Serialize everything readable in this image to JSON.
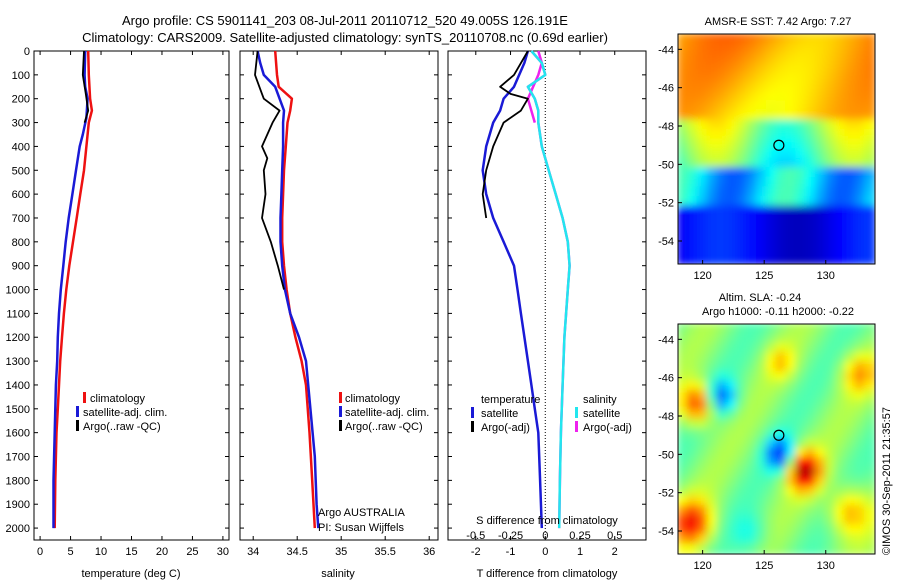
{
  "header": {
    "line1": "Argo profile: CS 5901141_203 08-Jul-2011 20110712_520 49.005S 126.191E",
    "line2": "Climatology: CARS2009. Satellite-adjusted climatology: synTS_20110708.nc (0.69d earlier)"
  },
  "colors": {
    "climatology": "#ee1111",
    "satellite": "#1a1ad6",
    "argo": "#000000",
    "sal_satellite": "#22e6ee",
    "sal_argo": "#ee22ee"
  },
  "chart_data": [
    {
      "type": "line",
      "xlabel": "temperature (deg C)",
      "ylim": [
        2050,
        0
      ],
      "xlim": [
        -1,
        31
      ],
      "xticks": [
        "0",
        "5",
        "10",
        "15",
        "20",
        "25",
        "30"
      ],
      "yticks": [
        "0",
        "100",
        "200",
        "300",
        "400",
        "500",
        "600",
        "700",
        "800",
        "900",
        "1000",
        "1100",
        "1200",
        "1300",
        "1400",
        "1500",
        "1600",
        "1700",
        "1800",
        "1900",
        "2000"
      ],
      "legend": [
        "climatology",
        "satellite-adj. clim.",
        "Argo(..raw -QC)"
      ],
      "series": [
        {
          "name": "climatology",
          "x": [
            7.9,
            8.0,
            8.2,
            8.5,
            8.0,
            7.6,
            7.2,
            6.6,
            6.0,
            5.4,
            4.8,
            4.3,
            3.9,
            3.6,
            3.3,
            3.1,
            2.9,
            2.7,
            2.6,
            2.5,
            2.4
          ],
          "depth": [
            0,
            100,
            200,
            250,
            300,
            400,
            500,
            600,
            700,
            800,
            900,
            1000,
            1100,
            1200,
            1300,
            1400,
            1500,
            1600,
            1700,
            1800,
            2000
          ]
        },
        {
          "name": "satellite-adj. clim.",
          "x": [
            7.4,
            7.3,
            7.4,
            7.8,
            7.6,
            7.0,
            6.5,
            5.9,
            5.3,
            4.7,
            4.2,
            3.8,
            3.4,
            3.1,
            2.9,
            2.8,
            2.6,
            2.5,
            2.4,
            2.3,
            2.2,
            2.2
          ],
          "depth": [
            0,
            100,
            150,
            200,
            280,
            350,
            400,
            500,
            600,
            700,
            800,
            900,
            1000,
            1100,
            1200,
            1300,
            1400,
            1500,
            1600,
            1700,
            1800,
            2000
          ]
        },
        {
          "name": "Argo(..raw -QC)",
          "x": [
            7.2,
            7.0,
            7.5,
            7.9,
            7.3
          ],
          "depth": [
            0,
            100,
            180,
            250,
            300
          ]
        }
      ]
    },
    {
      "type": "line",
      "xlabel": "salinity",
      "ylim": [
        2050,
        0
      ],
      "xlim": [
        33.85,
        36.1
      ],
      "xticks": [
        "34",
        "34.5",
        "35",
        "35.5",
        "36"
      ],
      "legend": [
        "climatology",
        "satellite-adj. clim.",
        "Argo(..raw -QC)"
      ],
      "annotation": [
        "Argo AUSTRALIA",
        "PI: Susan Wijffels"
      ],
      "series": [
        {
          "name": "climatology",
          "x": [
            34.25,
            34.27,
            34.29,
            34.44,
            34.42,
            34.39,
            34.37,
            34.35,
            34.34,
            34.33,
            34.33,
            34.35,
            34.38,
            34.42,
            34.48,
            34.55,
            34.6,
            34.64,
            34.67,
            34.7
          ],
          "depth": [
            0,
            100,
            150,
            200,
            250,
            300,
            400,
            500,
            600,
            700,
            800,
            900,
            1000,
            1100,
            1200,
            1300,
            1400,
            1600,
            1800,
            2000
          ]
        },
        {
          "name": "satellite-adj. clim.",
          "x": [
            34.05,
            34.08,
            34.12,
            34.25,
            34.35,
            34.34,
            34.34,
            34.33,
            34.32,
            34.31,
            34.31,
            34.33,
            34.36,
            34.42,
            34.52,
            34.6,
            34.65,
            34.7,
            34.72,
            34.74
          ],
          "depth": [
            0,
            50,
            100,
            150,
            250,
            300,
            400,
            500,
            600,
            700,
            800,
            900,
            1000,
            1100,
            1200,
            1300,
            1500,
            1700,
            1900,
            2000
          ]
        },
        {
          "name": "Argo(..raw -QC)",
          "x": [
            34.05,
            34.02,
            34.1,
            34.12,
            34.3,
            34.22,
            34.1,
            34.16,
            34.12,
            34.14,
            34.1,
            34.2,
            34.28,
            34.35
          ],
          "depth": [
            0,
            100,
            180,
            200,
            250,
            300,
            400,
            450,
            500,
            600,
            700,
            800,
            900,
            1000
          ]
        }
      ]
    },
    {
      "type": "line",
      "xlim": [
        -2.8,
        2.9
      ],
      "ylim": [
        2050,
        0
      ],
      "xticks_bottom": [
        "-2",
        "-1",
        "0",
        "1",
        "2"
      ],
      "xticks_top": [
        "-0.5",
        "-0.25",
        "0",
        "0.25",
        "0.5"
      ],
      "xlabel": "T difference from climatology",
      "xlabel_top": "S difference from climatology",
      "legend_left_title": "temperature",
      "legend_right_title": "salinity",
      "legend_left": [
        "satellite",
        "Argo(-adj)"
      ],
      "legend_right": [
        "satellite",
        "Argo(-adj)"
      ],
      "series": [
        {
          "name": "satellite",
          "x": [
            -0.5,
            -0.6,
            -0.9,
            -1.2,
            -1.3,
            -1.5,
            -1.7,
            -1.8,
            -1.7,
            -1.5,
            -1.2,
            -0.9,
            -0.8,
            -0.7,
            -0.6,
            -0.5,
            -0.4,
            -0.3,
            -0.2,
            -0.15,
            -0.1
          ],
          "depth": [
            0,
            50,
            150,
            200,
            250,
            300,
            400,
            500,
            600,
            700,
            800,
            900,
            1000,
            1100,
            1200,
            1300,
            1400,
            1500,
            1600,
            1800,
            2000
          ]
        },
        {
          "name": "Argo(-adj)",
          "x": [
            -0.5,
            -0.9,
            -1.3,
            -1.0,
            -0.5,
            -0.7,
            -1.2,
            -1.5,
            -1.7,
            -1.8,
            -1.7
          ],
          "depth": [
            0,
            100,
            150,
            180,
            200,
            250,
            300,
            400,
            500,
            600,
            700
          ]
        },
        {
          "name": "satellite",
          "x": [
            -0.4,
            -0.1,
            0.0,
            -0.5,
            -0.3,
            -0.2,
            -0.2,
            -0.1,
            0.1,
            0.3,
            0.5,
            0.65,
            0.7,
            0.65,
            0.6,
            0.55,
            0.5,
            0.45,
            0.42,
            0.4
          ],
          "depth": [
            0,
            50,
            100,
            150,
            200,
            250,
            300,
            400,
            500,
            600,
            700,
            800,
            900,
            1000,
            1100,
            1200,
            1400,
            1600,
            1800,
            2000
          ]
        },
        {
          "name": "Argo(-adj)",
          "x": [
            -0.2,
            -0.1,
            -0.2,
            -0.5,
            -0.3
          ],
          "depth": [
            0,
            50,
            100,
            200,
            300
          ]
        }
      ]
    },
    {
      "type": "heatmap",
      "title": "AMSR-E SST: 7.42  Argo: 7.27",
      "xticks": [
        "120",
        "125",
        "130"
      ],
      "yticks": [
        "-44",
        "-46",
        "-48",
        "-50",
        "-52",
        "-54"
      ],
      "xlim": [
        118,
        134
      ],
      "ylim": [
        -55.2,
        -43.2
      ],
      "marker": {
        "lon": 126.191,
        "lat": -49.005
      }
    },
    {
      "type": "heatmap",
      "title_line1": "Altim. SLA: -0.24",
      "title_line2": "Argo h1000: -0.11  h2000: -0.22",
      "xticks": [
        "120",
        "125",
        "130"
      ],
      "yticks": [
        "-44",
        "-46",
        "-48",
        "-50",
        "-52",
        "-54"
      ],
      "xlim": [
        118,
        134
      ],
      "ylim": [
        -55.2,
        -43.2
      ],
      "marker": {
        "lon": 126.191,
        "lat": -49.005
      }
    }
  ],
  "footer_side": "©IMOS 30-Sep-2011 21:35:57"
}
